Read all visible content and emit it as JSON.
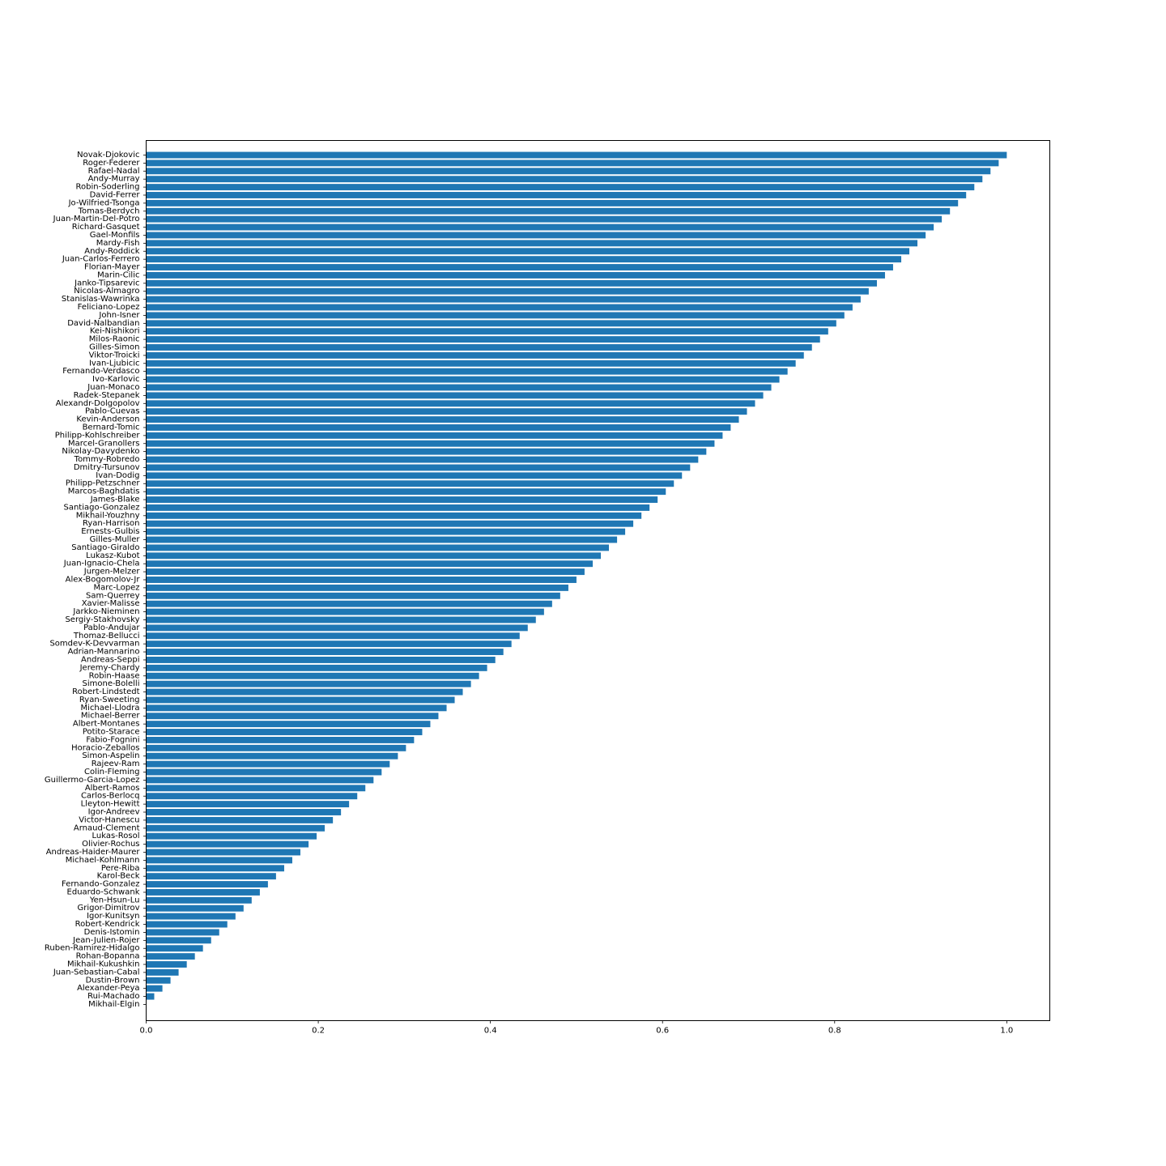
{
  "chart_data": {
    "type": "bar",
    "orientation": "horizontal",
    "title": "",
    "xlabel": "",
    "ylabel": "",
    "xlim": [
      0,
      1.05
    ],
    "grid": false,
    "bar_color": "#1f77b4",
    "x_ticks": [
      {
        "value": 0.0,
        "label": "0.0"
      },
      {
        "value": 0.2,
        "label": "0.2"
      },
      {
        "value": 0.4,
        "label": "0.4"
      },
      {
        "value": 0.6,
        "label": "0.6"
      },
      {
        "value": 0.8,
        "label": "0.8"
      },
      {
        "value": 1.0,
        "label": "1.0"
      }
    ],
    "categories": [
      "Novak-Djokovic",
      "Roger-Federer",
      "Rafael-Nadal",
      "Andy-Murray",
      "Robin-Soderling",
      "David-Ferrer",
      "Jo-Wilfried-Tsonga",
      "Tomas-Berdych",
      "Juan-Martin-Del-Potro",
      "Richard-Gasquet",
      "Gael-Monfils",
      "Mardy-Fish",
      "Andy-Roddick",
      "Juan-Carlos-Ferrero",
      "Florian-Mayer",
      "Marin-Cilic",
      "Janko-Tipsarevic",
      "Nicolas-Almagro",
      "Stanislas-Wawrinka",
      "Feliciano-Lopez",
      "John-Isner",
      "David-Nalbandian",
      "Kei-Nishikori",
      "Milos-Raonic",
      "Gilles-Simon",
      "Viktor-Troicki",
      "Ivan-Ljubicic",
      "Fernando-Verdasco",
      "Ivo-Karlovic",
      "Juan-Monaco",
      "Radek-Stepanek",
      "Alexandr-Dolgopolov",
      "Pablo-Cuevas",
      "Kevin-Anderson",
      "Bernard-Tomic",
      "Philipp-Kohlschreiber",
      "Marcel-Granollers",
      "Nikolay-Davydenko",
      "Tommy-Robredo",
      "Dmitry-Tursunov",
      "Ivan-Dodig",
      "Philipp-Petzschner",
      "Marcos-Baghdatis",
      "James-Blake",
      "Santiago-Gonzalez",
      "Mikhail-Youzhny",
      "Ryan-Harrison",
      "Ernests-Gulbis",
      "Gilles-Muller",
      "Santiago-Giraldo",
      "Lukasz-Kubot",
      "Juan-Ignacio-Chela",
      "Jurgen-Melzer",
      "Alex-Bogomolov-Jr",
      "Marc-Lopez",
      "Sam-Querrey",
      "Xavier-Malisse",
      "Jarkko-Nieminen",
      "Sergiy-Stakhovsky",
      "Pablo-Andujar",
      "Thomaz-Bellucci",
      "Somdev-K-Devvarman",
      "Adrian-Mannarino",
      "Andreas-Seppi",
      "Jeremy-Chardy",
      "Robin-Haase",
      "Simone-Bolelli",
      "Robert-Lindstedt",
      "Ryan-Sweeting",
      "Michael-Llodra",
      "Michael-Berrer",
      "Albert-Montanes",
      "Potito-Starace",
      "Fabio-Fognini",
      "Horacio-Zeballos",
      "Simon-Aspelin",
      "Rajeev-Ram",
      "Colin-Fleming",
      "Guillermo-Garcia-Lopez",
      "Albert-Ramos",
      "Carlos-Berlocq",
      "Lleyton-Hewitt",
      "Igor-Andreev",
      "Victor-Hanescu",
      "Arnaud-Clement",
      "Lukas-Rosol",
      "Olivier-Rochus",
      "Andreas-Haider-Maurer",
      "Michael-Kohlmann",
      "Pere-Riba",
      "Karol-Beck",
      "Fernando-Gonzalez",
      "Eduardo-Schwank",
      "Yen-Hsun-Lu",
      "Grigor-Dimitrov",
      "Igor-Kunitsyn",
      "Robert-Kendrick",
      "Denis-Istomin",
      "Jean-Julien-Rojer",
      "Ruben-Ramirez-Hidalgo",
      "Rohan-Bopanna",
      "Mikhail-Kukushkin",
      "Juan-Sebastian-Cabal",
      "Dustin-Brown",
      "Alexander-Peya",
      "Rui-Machado",
      "Mikhail-Elgin"
    ],
    "values": [
      1.0,
      0.9906,
      0.9811,
      0.9717,
      0.9623,
      0.9528,
      0.9434,
      0.934,
      0.9245,
      0.9151,
      0.9057,
      0.8962,
      0.8868,
      0.8774,
      0.8679,
      0.8585,
      0.8491,
      0.8396,
      0.8302,
      0.8208,
      0.8113,
      0.8019,
      0.7925,
      0.783,
      0.7736,
      0.7642,
      0.7547,
      0.7453,
      0.7358,
      0.7264,
      0.717,
      0.7075,
      0.6981,
      0.6887,
      0.6792,
      0.6698,
      0.6604,
      0.6509,
      0.6415,
      0.6321,
      0.6226,
      0.6132,
      0.6038,
      0.5943,
      0.5849,
      0.5755,
      0.566,
      0.5566,
      0.5472,
      0.5377,
      0.5283,
      0.5189,
      0.5094,
      0.5,
      0.4906,
      0.4811,
      0.4717,
      0.4623,
      0.4528,
      0.4434,
      0.434,
      0.4245,
      0.4151,
      0.4057,
      0.3962,
      0.3868,
      0.3774,
      0.3679,
      0.3585,
      0.3491,
      0.3396,
      0.3302,
      0.3208,
      0.3113,
      0.3019,
      0.2925,
      0.283,
      0.2736,
      0.2642,
      0.2547,
      0.2453,
      0.2358,
      0.2264,
      0.217,
      0.2075,
      0.1981,
      0.1887,
      0.1792,
      0.1698,
      0.1604,
      0.1509,
      0.1415,
      0.1321,
      0.1226,
      0.1132,
      0.1038,
      0.0943,
      0.0849,
      0.0755,
      0.066,
      0.0566,
      0.0472,
      0.0377,
      0.0283,
      0.0189,
      0.0094,
      0.0
    ]
  }
}
